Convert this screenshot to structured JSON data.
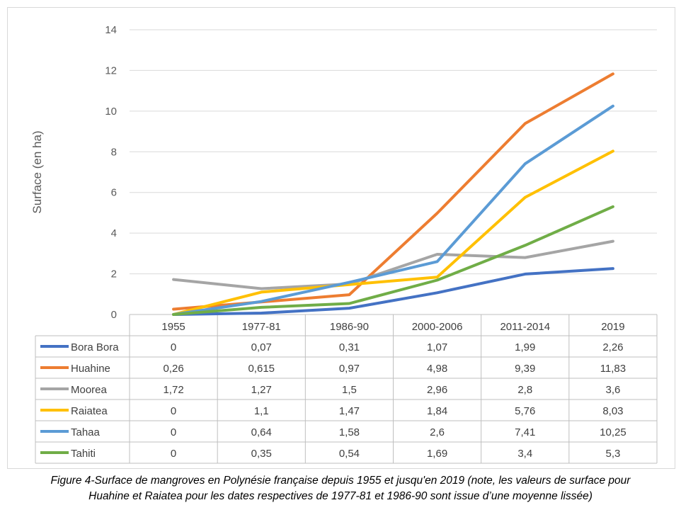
{
  "chart_data": {
    "type": "line",
    "ylabel": "Surface (en ha)",
    "ylim": [
      0,
      14
    ],
    "yticks": [
      0,
      2,
      4,
      6,
      8,
      10,
      12,
      14
    ],
    "grid": true,
    "legend": "data-table",
    "categories": [
      "1955",
      "1977-81",
      "1986-90",
      "2000-2006",
      "2011-2014",
      "2019"
    ],
    "series": [
      {
        "name": "Bora Bora",
        "color": "#4472c4",
        "values": [
          0,
          0.07,
          0.31,
          1.07,
          1.99,
          2.26
        ],
        "labels": [
          "0",
          "0,07",
          "0,31",
          "1,07",
          "1,99",
          "2,26"
        ]
      },
      {
        "name": "Huahine",
        "color": "#ed7d31",
        "values": [
          0.26,
          0.615,
          0.97,
          4.98,
          9.39,
          11.83
        ],
        "labels": [
          "0,26",
          "0,615",
          "0,97",
          "4,98",
          "9,39",
          "11,83"
        ]
      },
      {
        "name": "Moorea",
        "color": "#a5a5a5",
        "values": [
          1.72,
          1.27,
          1.5,
          2.96,
          2.8,
          3.6
        ],
        "labels": [
          "1,72",
          "1,27",
          "1,5",
          "2,96",
          "2,8",
          "3,6"
        ]
      },
      {
        "name": "Raiatea",
        "color": "#ffc000",
        "values": [
          0,
          1.1,
          1.47,
          1.84,
          5.76,
          8.03
        ],
        "labels": [
          "0",
          "1,1",
          "1,47",
          "1,84",
          "5,76",
          "8,03"
        ]
      },
      {
        "name": "Tahaa",
        "color": "#5b9bd5",
        "values": [
          0,
          0.64,
          1.58,
          2.6,
          7.41,
          10.25
        ],
        "labels": [
          "0",
          "0,64",
          "1,58",
          "2,6",
          "7,41",
          "10,25"
        ]
      },
      {
        "name": "Tahiti",
        "color": "#70ad47",
        "values": [
          0,
          0.35,
          0.54,
          1.69,
          3.4,
          5.3
        ],
        "labels": [
          "0",
          "0,35",
          "0,54",
          "1,69",
          "3,4",
          "5,3"
        ]
      }
    ]
  },
  "caption": {
    "line1": "Figure 4-Surface de mangroves en Polynésie française depuis 1955 et jusqu'en 2019 (note, les valeurs de surface pour",
    "line2": "Huahine et Raiatea pour les dates respectives de 1977-81 et 1986-90 sont issue d’une moyenne lissée)"
  }
}
